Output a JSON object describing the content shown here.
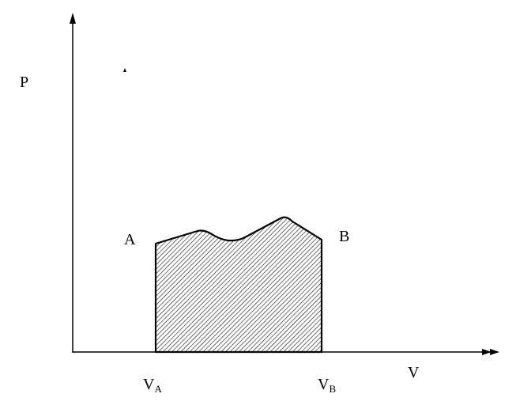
{
  "diagram": {
    "y_axis_label": "P",
    "x_axis_label": "V",
    "point_a": "A",
    "point_b": "B",
    "va": {
      "main": "V",
      "sub": "A"
    },
    "vb": {
      "main": "V",
      "sub": "B"
    },
    "colors": {
      "line": "#000000",
      "background": "#ffffff"
    }
  }
}
